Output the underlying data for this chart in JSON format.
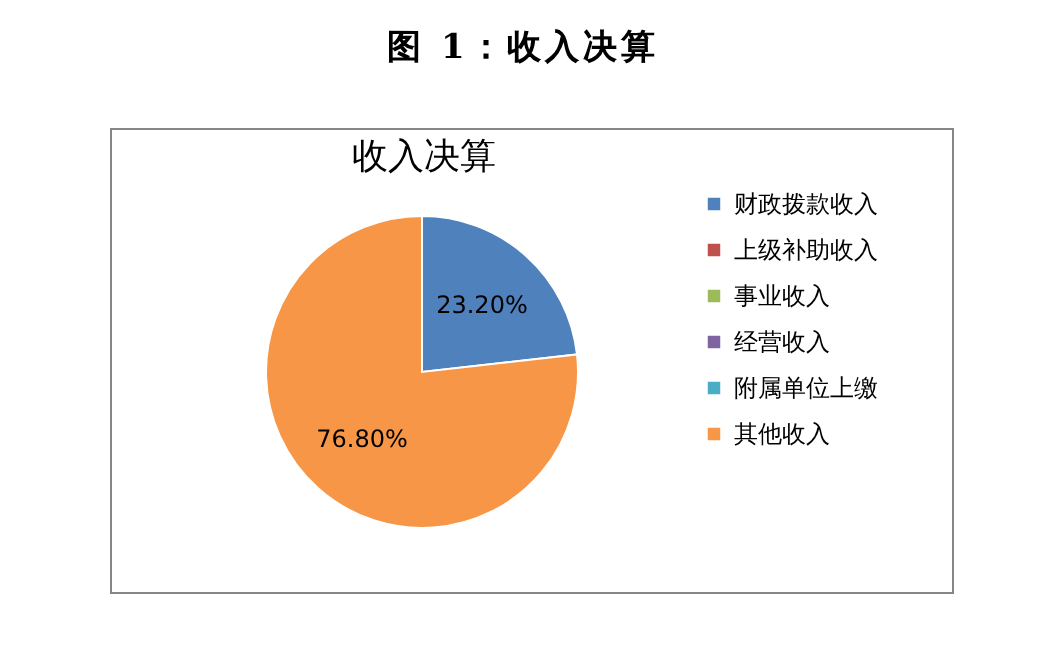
{
  "chart_data": {
    "type": "pie",
    "title": "图 1：收入决算",
    "subtitle": "收入决算",
    "categories": [
      "财政拨款收入",
      "上级补助收入",
      "事业收入",
      "经营收入",
      "附属单位上缴",
      "其他收入"
    ],
    "values": [
      23.2,
      0,
      0,
      0,
      0,
      76.8
    ],
    "colors": [
      "#4f81bd",
      "#c0504d",
      "#9bbb59",
      "#8064a2",
      "#4bacc6",
      "#f79646"
    ],
    "value_labels": [
      "23.20%",
      null,
      null,
      null,
      null,
      "76.80%"
    ],
    "legend": "right"
  }
}
